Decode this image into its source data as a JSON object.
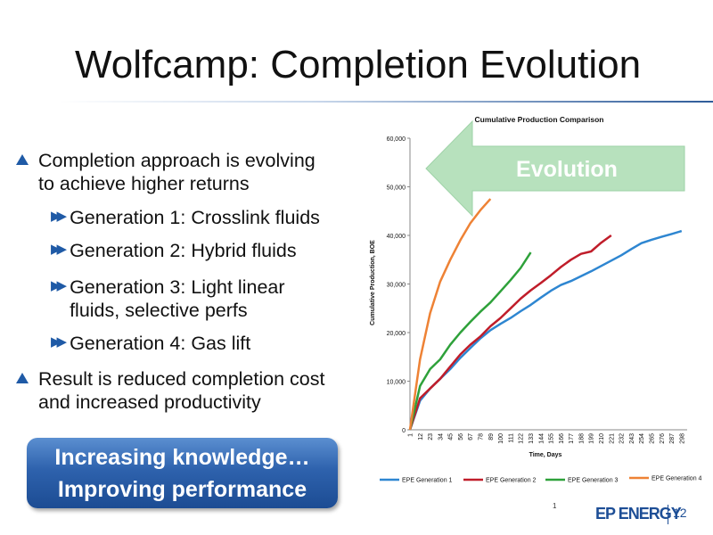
{
  "slide": {
    "title": "Wolfcamp: Completion Evolution",
    "page_number": "12",
    "footnote_marker": "1",
    "logo_text": "EP ENERGY"
  },
  "bullets": {
    "main1": [
      "Completion approach is evolving",
      "to achieve higher returns"
    ],
    "subs": [
      [
        "Generation 1: Crosslink fluids"
      ],
      [
        "Generation 2: Hybrid fluids"
      ],
      [
        "Generation 3: Light linear",
        "fluids, selective perfs"
      ],
      [
        "Generation 4: Gas lift"
      ]
    ],
    "main2": [
      "Result is reduced completion cost",
      "and increased productivity"
    ]
  },
  "callout": {
    "line1": "Increasing knowledge…",
    "line2": "Improving performance"
  },
  "chart_data": {
    "type": "line",
    "title": "Cumulative Production Comparison",
    "xlabel": "Time, Days",
    "ylabel": "Cumulative Production, BOE",
    "ylim": [
      0,
      60000
    ],
    "yticks": [
      "0",
      "10,000",
      "20,000",
      "30,000",
      "40,000",
      "50,000",
      "60,000"
    ],
    "xtick_labels": [
      "1",
      "12",
      "23",
      "34",
      "45",
      "56",
      "67",
      "78",
      "89",
      "100",
      "111",
      "122",
      "133",
      "144",
      "155",
      "166",
      "177",
      "188",
      "199",
      "210",
      "221",
      "232",
      "243",
      "254",
      "265",
      "276",
      "287",
      "298"
    ],
    "grid": false,
    "legend_position": "bottom",
    "annotation": "Evolution",
    "series": [
      {
        "name": "EPE Generation 1",
        "color": "#2e86d1",
        "x": [
          1,
          12,
          23,
          34,
          45,
          56,
          67,
          78,
          89,
          100,
          111,
          122,
          133,
          144,
          155,
          166,
          177,
          188,
          199,
          210,
          221,
          232,
          243,
          254,
          265,
          276,
          287,
          298
        ],
        "y": [
          0,
          6000,
          8500,
          10500,
          12500,
          14800,
          16800,
          18800,
          20500,
          21800,
          23000,
          24400,
          25700,
          27200,
          28600,
          29800,
          30600,
          31600,
          32600,
          33700,
          34800,
          35900,
          37200,
          38400,
          39100,
          39700,
          40300,
          40900
        ]
      },
      {
        "name": "EPE Generation 2",
        "color": "#c01d2a",
        "x": [
          1,
          12,
          23,
          34,
          45,
          56,
          67,
          78,
          89,
          100,
          111,
          122,
          133,
          144,
          155,
          166,
          177,
          188,
          199,
          210,
          221
        ],
        "y": [
          0,
          6500,
          8500,
          10500,
          13000,
          15500,
          17500,
          19200,
          21300,
          23000,
          25000,
          27000,
          28700,
          30200,
          31800,
          33500,
          35000,
          36200,
          36700,
          38500,
          40000
        ]
      },
      {
        "name": "EPE Generation 3",
        "color": "#2ea13a",
        "x": [
          1,
          12,
          23,
          34,
          45,
          56,
          67,
          78,
          89,
          100,
          111,
          122,
          133
        ],
        "y": [
          0,
          9000,
          12500,
          14500,
          17500,
          20000,
          22200,
          24300,
          26200,
          28500,
          30800,
          33300,
          36500
        ]
      },
      {
        "name": "EPE Generation 4",
        "color": "#ee8235",
        "x": [
          1,
          12,
          23,
          34,
          45,
          56,
          67,
          78,
          89
        ],
        "y": [
          0,
          14500,
          24000,
          30500,
          35000,
          39000,
          42500,
          45200,
          47500
        ]
      }
    ]
  }
}
